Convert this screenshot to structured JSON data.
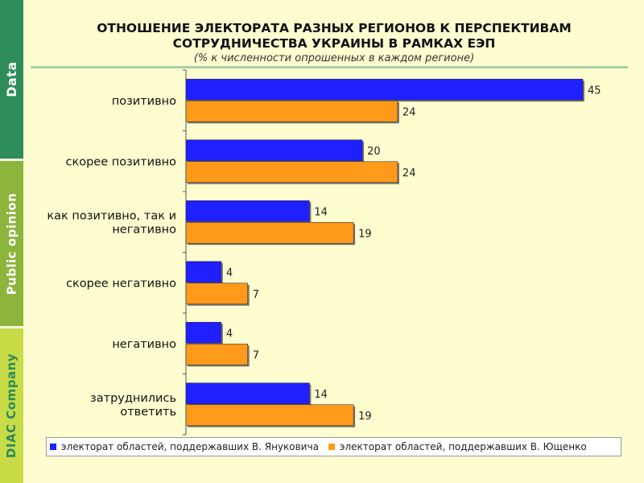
{
  "sidebar": {
    "sections": [
      "Data",
      "Public opinion",
      "DIAC Company"
    ]
  },
  "colors": {
    "series1": "#1f1fff",
    "series2": "#ff9a1a"
  },
  "chart_data": {
    "type": "bar",
    "orientation": "horizontal",
    "title_line1": "ОТНОШЕНИЕ ЭЛЕКТОРАТА РАЗНЫХ РЕГИОНОВ К ПЕРСПЕКТИВАМ",
    "title_line2": "СОТРУДНИЧЕСТВА УКРАИНЫ В РАМКАХ ЕЭП",
    "subtitle": "(% к численности опрошенных в каждом регионе)",
    "categories": [
      [
        "позитивно"
      ],
      [
        "скорее позитивно"
      ],
      [
        "как позитивно, так и",
        "негативно"
      ],
      [
        "скорее негативно"
      ],
      [
        "негативно"
      ],
      [
        "затруднились",
        "ответить"
      ]
    ],
    "series": [
      {
        "name": "электорат областей, поддержавших В. Януковича",
        "values": [
          45,
          20,
          14,
          4,
          4,
          14
        ]
      },
      {
        "name": "электорат областей, поддержавших В. Ющенко",
        "values": [
          24,
          24,
          19,
          7,
          7,
          19
        ]
      }
    ],
    "xlim": [
      0,
      45
    ],
    "legend_position": "bottom"
  }
}
